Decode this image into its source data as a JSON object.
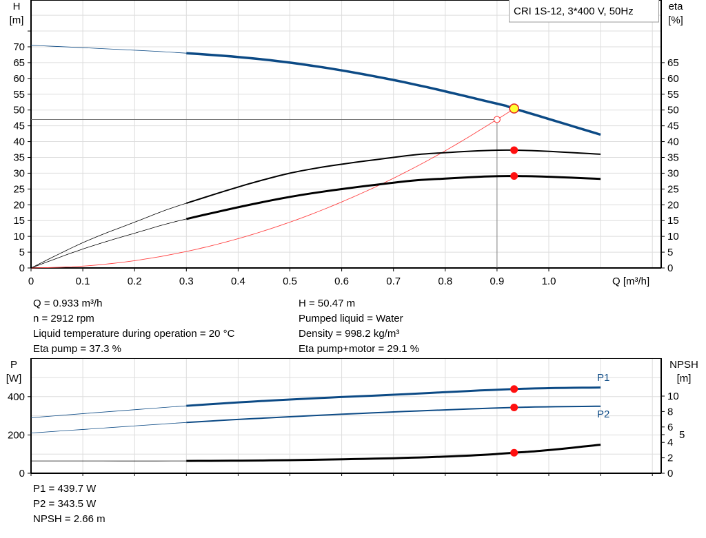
{
  "chart_data": [
    {
      "type": "line",
      "legend_box": "CRI 1S-12, 3*400 V, 50Hz",
      "xlabel": "Q [m³/h]",
      "ylabel_left": [
        "H",
        "[m]"
      ],
      "ylabel_right": [
        "eta",
        "[%]"
      ],
      "xlim": [
        0,
        1.2
      ],
      "ylim": [
        0,
        80
      ],
      "x_ticks": [
        "0",
        "0.1",
        "0.2",
        "0.3",
        "0.4",
        "0.5",
        "0.6",
        "0.7",
        "0.8",
        "0.9",
        "1.0"
      ],
      "y_ticks_left": [
        "0",
        "5",
        "10",
        "15",
        "20",
        "25",
        "30",
        "35",
        "40",
        "45",
        "50",
        "55",
        "60",
        "65",
        "70"
      ],
      "y_ticks_right": [
        "0",
        "5",
        "10",
        "15",
        "20",
        "25",
        "30",
        "35",
        "40",
        "45",
        "50",
        "55",
        "60",
        "65"
      ],
      "grid": true,
      "series": [
        {
          "key": "H",
          "color": "#0c4a85",
          "x": [
            0,
            0.3,
            0.5,
            0.7,
            0.9,
            0.933,
            1.1
          ],
          "y": [
            70.5,
            68,
            65,
            59.5,
            52,
            50.47,
            42.2
          ],
          "thin_below": 0.3
        },
        {
          "key": "eta_pump",
          "color": "#000000",
          "x": [
            0,
            0.1,
            0.2,
            0.3,
            0.5,
            0.7,
            0.8,
            0.933,
            1.1
          ],
          "y": [
            0,
            8,
            14.5,
            20.5,
            30,
            35,
            36.5,
            37.3,
            36
          ],
          "thin_below": 0.3
        },
        {
          "key": "eta_pump_motor",
          "color": "#000000",
          "x": [
            0,
            0.1,
            0.2,
            0.3,
            0.5,
            0.7,
            0.8,
            0.933,
            1.1
          ],
          "y": [
            0,
            6,
            11,
            15.5,
            22.5,
            27,
            28.3,
            29.1,
            28.2
          ],
          "thin_below": 0.3
        },
        {
          "key": "system_curve",
          "color": "#ff4040",
          "x": [
            0,
            0.1,
            0.2,
            0.3,
            0.4,
            0.5,
            0.6,
            0.7,
            0.8,
            0.9,
            0.933
          ],
          "y": [
            0,
            0.58,
            2.32,
            5.22,
            9.28,
            14.5,
            20.9,
            28.4,
            37.1,
            47,
            50.47
          ]
        }
      ],
      "duty_point": {
        "Q": 0.933,
        "H": 50.47,
        "eta_pump": 37.3,
        "eta_pump_motor": 29.1
      },
      "cursor": {
        "Q": 0.9,
        "H": 47
      }
    },
    {
      "type": "line",
      "ylabel_left": [
        "P",
        "[W]"
      ],
      "ylabel_right": [
        "NPSH",
        "[m]"
      ],
      "xlim": [
        0,
        1.2
      ],
      "ylim_left": [
        0,
        600
      ],
      "ylim_right": [
        0,
        14.9
      ],
      "y_ticks_left": [
        "0",
        "200",
        "400"
      ],
      "y_ticks_right": [
        "0",
        "2",
        "4",
        "5",
        "6",
        "8",
        "10"
      ],
      "grid": true,
      "series": [
        {
          "name": "P1",
          "axis": "left",
          "color": "#0c4a85",
          "x": [
            0,
            0.3,
            0.5,
            0.7,
            0.933,
            1.1
          ],
          "y": [
            290,
            352,
            385,
            410,
            439.7,
            448
          ],
          "thin_below": 0.3
        },
        {
          "name": "P2",
          "axis": "left",
          "color": "#0c4a85",
          "x": [
            0,
            0.3,
            0.5,
            0.7,
            0.933,
            1.1
          ],
          "y": [
            210,
            265,
            295,
            320,
            343.5,
            350
          ],
          "thin_below": 0.3
        },
        {
          "key": "NPSH",
          "axis": "right",
          "color": "#000000",
          "x": [
            0,
            0.3,
            0.5,
            0.7,
            0.85,
            0.933,
            1.0,
            1.1
          ],
          "y": [
            1.6,
            1.6,
            1.7,
            1.95,
            2.3,
            2.66,
            3.0,
            3.7
          ],
          "thin_below": 0.3
        }
      ],
      "duty_point": {
        "Q": 0.933,
        "P1": 439.7,
        "P2": 343.5,
        "NPSH": 2.66
      }
    }
  ],
  "info": {
    "left": [
      "Q = 0.933 m³/h",
      "n = 2912 rpm",
      "Liquid temperature during operation = 20 °C",
      "Eta pump = 37.3 %"
    ],
    "right": [
      "H = 50.47 m",
      "Pumped liquid = Water",
      "Density = 998.2 kg/m³",
      "Eta pump+motor = 29.1 %"
    ],
    "bottom": [
      "P1 = 439.7 W",
      "P2 = 343.5 W",
      "NPSH = 2.66 m"
    ]
  }
}
